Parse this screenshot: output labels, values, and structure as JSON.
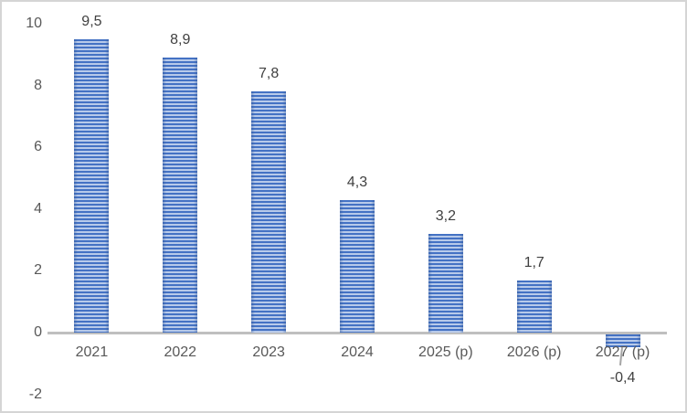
{
  "chart_data": {
    "type": "bar",
    "title": "",
    "xlabel": "",
    "ylabel": "",
    "categories": [
      "2021",
      "2022",
      "2023",
      "2024",
      "2025 (p)",
      "2026 (p)",
      "2027 (p)"
    ],
    "values": [
      9.5,
      8.9,
      7.8,
      4.3,
      3.2,
      1.7,
      -0.4
    ],
    "value_labels": [
      "9,5",
      "8,9",
      "7,8",
      "4,3",
      "3,2",
      "1,7",
      "-0,4"
    ],
    "yticks": [
      10,
      8,
      6,
      4,
      2,
      0,
      -2
    ],
    "ytick_labels": [
      "10",
      "8",
      "6",
      "4",
      "2",
      "0",
      "-2"
    ],
    "ylim": [
      -2,
      10
    ],
    "grid": false,
    "legend_position": "none",
    "decimal_separator": ",",
    "bar_fill_color": "#4472c4",
    "bar_pattern": "horizontal-stripes",
    "bar_stripe_light_color": "#eff4fb",
    "axis_line_color": "#bfbfbf",
    "tick_label_color": "#595959",
    "data_label_color": "#404040",
    "leader_line_color": "#a6a6a6",
    "frame_border_color": "#d5d5d5",
    "background_color": "#ffffff"
  }
}
